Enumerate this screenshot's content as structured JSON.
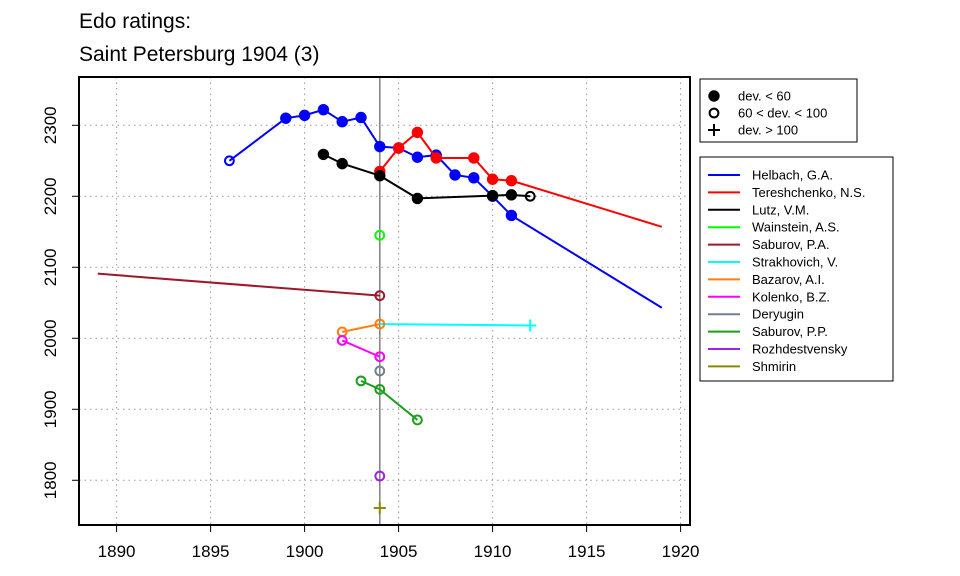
{
  "chart_data": {
    "type": "line",
    "title": "Edo ratings:",
    "subtitle": "Saint Petersburg 1904 (3)",
    "xlabel": "",
    "ylabel": "",
    "xlim": [
      1888,
      1920.5
    ],
    "ylim": [
      1737,
      2368
    ],
    "xticks": [
      1890,
      1895,
      1900,
      1905,
      1910,
      1915,
      1920
    ],
    "yticks": [
      1800,
      1900,
      2000,
      2100,
      2200,
      2300
    ],
    "grid": true,
    "event_year": 1904,
    "legend_markers": [
      {
        "label": "dev. < 60",
        "marker": "filled"
      },
      {
        "label": "60 < dev. < 100",
        "marker": "open"
      },
      {
        "label": "dev. > 100",
        "marker": "plus"
      }
    ],
    "legend_placement": "right",
    "series": [
      {
        "name": "Helbach, G.A.",
        "color": "#0000ff",
        "points": [
          [
            1896,
            2250,
            "open"
          ],
          [
            1899,
            2310,
            "filled"
          ],
          [
            1900,
            2314,
            "filled"
          ],
          [
            1901,
            2322,
            "filled"
          ],
          [
            1902,
            2305,
            "filled"
          ],
          [
            1903,
            2311,
            "filled"
          ],
          [
            1904,
            2270,
            "filled"
          ],
          [
            1905,
            2268,
            "filled"
          ],
          [
            1906,
            2255,
            "filled"
          ],
          [
            1907,
            2258,
            "filled"
          ],
          [
            1908,
            2230,
            "filled"
          ],
          [
            1909,
            2226,
            "filled"
          ],
          [
            1910,
            2200,
            "filled"
          ],
          [
            1911,
            2173,
            "filled"
          ],
          [
            1919,
            2043,
            "none"
          ]
        ]
      },
      {
        "name": "Tereshchenko, N.S.",
        "color": "#ff0000",
        "points": [
          [
            1904,
            2235,
            "filled"
          ],
          [
            1905,
            2268,
            "filled"
          ],
          [
            1906,
            2290,
            "filled"
          ],
          [
            1907,
            2254,
            "filled"
          ],
          [
            1909,
            2254,
            "filled"
          ],
          [
            1910,
            2224,
            "filled"
          ],
          [
            1911,
            2222,
            "filled"
          ],
          [
            1919,
            2157,
            "none"
          ]
        ]
      },
      {
        "name": "Lutz, V.M.",
        "color": "#000000",
        "points": [
          [
            1901,
            2259,
            "filled"
          ],
          [
            1902,
            2246,
            "filled"
          ],
          [
            1904,
            2229,
            "filled"
          ],
          [
            1906,
            2197,
            "filled"
          ],
          [
            1910,
            2201,
            "filled"
          ],
          [
            1911,
            2202,
            "filled"
          ],
          [
            1912,
            2200,
            "open"
          ]
        ]
      },
      {
        "name": "Wainstein, A.S.",
        "color": "#00ff00",
        "points": [
          [
            1904,
            2145,
            "open"
          ]
        ]
      },
      {
        "name": "Saburov, P.A.",
        "color": "#a0162a",
        "points": [
          [
            1889,
            2091,
            "none"
          ],
          [
            1904,
            2060,
            "open"
          ]
        ]
      },
      {
        "name": "Strakhovich, V.",
        "color": "#00ffff",
        "points": [
          [
            1904,
            2020,
            "none"
          ],
          [
            1912,
            2018,
            "plus"
          ]
        ]
      },
      {
        "name": "Bazarov, A.I.",
        "color": "#ff7f0e",
        "points": [
          [
            1902,
            2009,
            "open"
          ],
          [
            1904,
            2020,
            "open"
          ]
        ]
      },
      {
        "name": "Kolenko, B.Z.",
        "color": "#ff00ff",
        "points": [
          [
            1902,
            1997,
            "open"
          ],
          [
            1904,
            1974,
            "open"
          ]
        ]
      },
      {
        "name": "Deryugin",
        "color": "#708090",
        "points": [
          [
            1904,
            1954,
            "open"
          ]
        ]
      },
      {
        "name": "Saburov, P.P.",
        "color": "#1aa01a",
        "points": [
          [
            1903,
            1940,
            "open"
          ],
          [
            1904,
            1928,
            "open"
          ],
          [
            1906,
            1885,
            "open"
          ]
        ]
      },
      {
        "name": "Rozhdestvensky",
        "color": "#a020f0",
        "points": [
          [
            1904,
            1806,
            "open"
          ]
        ]
      },
      {
        "name": "Shmirin",
        "color": "#8b8b00",
        "points": [
          [
            1904,
            1761,
            "plus"
          ]
        ]
      }
    ]
  }
}
